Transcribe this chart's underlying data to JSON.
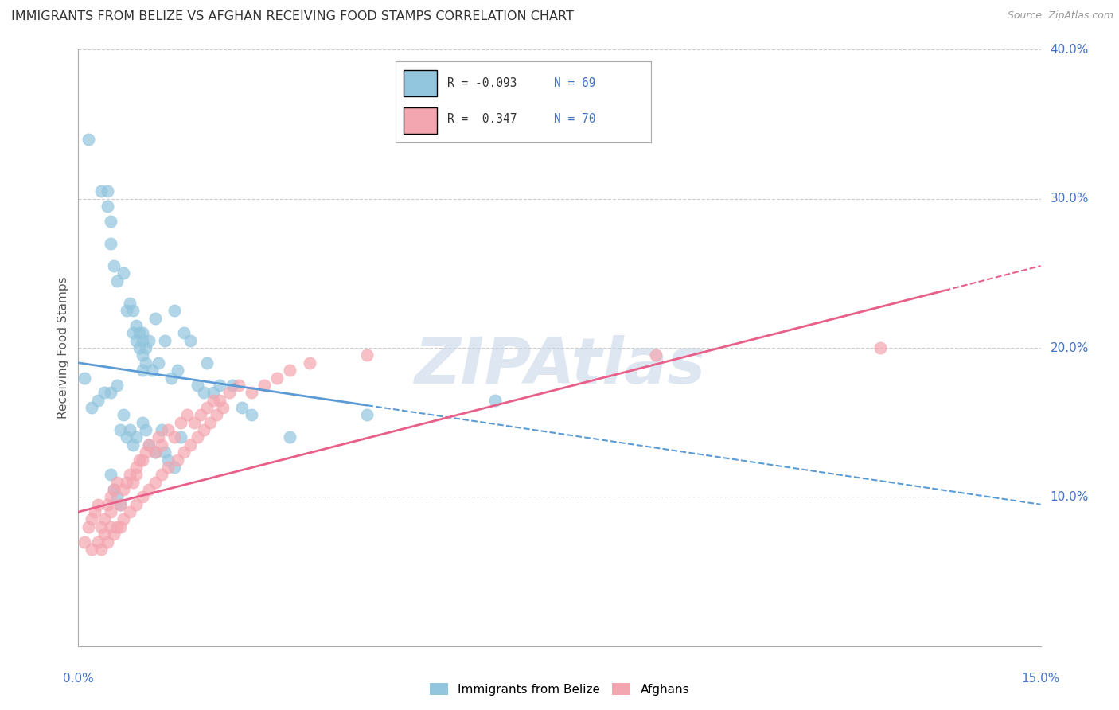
{
  "title": "IMMIGRANTS FROM BELIZE VS AFGHAN RECEIVING FOOD STAMPS CORRELATION CHART",
  "source": "Source: ZipAtlas.com",
  "ylabel": "Receiving Food Stamps",
  "xlim": [
    0.0,
    15.0
  ],
  "ylim": [
    0.0,
    40.0
  ],
  "belize_R": -0.093,
  "belize_N": 69,
  "afghan_R": 0.347,
  "afghan_N": 70,
  "belize_color": "#92C5DE",
  "afghan_color": "#F4A6B0",
  "belize_line_color": "#5B9BD5",
  "afghan_line_color": "#E8608A",
  "watermark": "ZIPAtlas",
  "watermark_color": "#C8D8E8",
  "belize_line_x0": 0.0,
  "belize_line_y0": 19.0,
  "belize_line_x1": 15.0,
  "belize_line_y1": 9.5,
  "afghan_line_x0": 0.0,
  "afghan_line_y0": 9.0,
  "afghan_line_x1": 15.0,
  "afghan_line_y1": 25.5,
  "belize_solid_max": 4.5,
  "afghan_solid_max": 13.5,
  "belize_x": [
    0.15,
    0.35,
    0.45,
    0.45,
    0.5,
    0.5,
    0.55,
    0.6,
    0.7,
    0.75,
    0.8,
    0.85,
    0.85,
    0.9,
    0.9,
    0.95,
    0.95,
    1.0,
    1.0,
    1.0,
    1.0,
    1.05,
    1.05,
    1.1,
    1.15,
    1.2,
    1.25,
    1.35,
    1.45,
    1.5,
    1.55,
    1.65,
    1.75,
    1.85,
    1.95,
    2.0,
    2.1,
    2.2,
    2.4,
    2.55,
    2.7,
    0.1,
    0.2,
    0.3,
    0.4,
    0.5,
    0.6,
    0.65,
    0.7,
    0.75,
    0.8,
    0.85,
    0.9,
    1.0,
    1.05,
    1.1,
    1.2,
    1.3,
    1.35,
    1.4,
    1.5,
    1.6,
    3.3,
    4.5,
    6.5,
    0.5,
    0.55,
    0.6,
    0.65
  ],
  "belize_y": [
    34.0,
    30.5,
    29.5,
    30.5,
    27.0,
    28.5,
    25.5,
    24.5,
    25.0,
    22.5,
    23.0,
    21.0,
    22.5,
    21.5,
    20.5,
    21.0,
    20.0,
    21.0,
    20.5,
    19.5,
    18.5,
    20.0,
    19.0,
    20.5,
    18.5,
    22.0,
    19.0,
    20.5,
    18.0,
    22.5,
    18.5,
    21.0,
    20.5,
    17.5,
    17.0,
    19.0,
    17.0,
    17.5,
    17.5,
    16.0,
    15.5,
    18.0,
    16.0,
    16.5,
    17.0,
    17.0,
    17.5,
    14.5,
    15.5,
    14.0,
    14.5,
    13.5,
    14.0,
    15.0,
    14.5,
    13.5,
    13.0,
    14.5,
    13.0,
    12.5,
    12.0,
    14.0,
    14.0,
    15.5,
    16.5,
    11.5,
    10.5,
    10.0,
    9.5
  ],
  "afghan_x": [
    0.1,
    0.15,
    0.2,
    0.25,
    0.3,
    0.35,
    0.4,
    0.45,
    0.5,
    0.5,
    0.55,
    0.6,
    0.65,
    0.7,
    0.75,
    0.8,
    0.85,
    0.9,
    0.9,
    0.95,
    1.0,
    1.05,
    1.1,
    1.2,
    1.25,
    1.3,
    1.4,
    1.5,
    1.6,
    1.7,
    1.8,
    1.9,
    2.0,
    2.1,
    2.2,
    2.35,
    2.5,
    2.7,
    2.9,
    3.1,
    3.3,
    3.6,
    0.2,
    0.3,
    0.4,
    0.5,
    0.6,
    0.7,
    0.8,
    0.9,
    1.0,
    1.1,
    1.2,
    1.3,
    1.4,
    1.55,
    1.65,
    1.75,
    1.85,
    1.95,
    2.05,
    2.15,
    2.25,
    4.5,
    9.0,
    12.5,
    0.35,
    0.45,
    0.55,
    0.65
  ],
  "afghan_y": [
    7.0,
    8.0,
    8.5,
    9.0,
    9.5,
    8.0,
    8.5,
    9.5,
    10.0,
    9.0,
    10.5,
    11.0,
    9.5,
    10.5,
    11.0,
    11.5,
    11.0,
    11.5,
    12.0,
    12.5,
    12.5,
    13.0,
    13.5,
    13.0,
    14.0,
    13.5,
    14.5,
    14.0,
    15.0,
    15.5,
    15.0,
    15.5,
    16.0,
    16.5,
    16.5,
    17.0,
    17.5,
    17.0,
    17.5,
    18.0,
    18.5,
    19.0,
    6.5,
    7.0,
    7.5,
    8.0,
    8.0,
    8.5,
    9.0,
    9.5,
    10.0,
    10.5,
    11.0,
    11.5,
    12.0,
    12.5,
    13.0,
    13.5,
    14.0,
    14.5,
    15.0,
    15.5,
    16.0,
    19.5,
    19.5,
    20.0,
    6.5,
    7.0,
    7.5,
    8.0
  ]
}
